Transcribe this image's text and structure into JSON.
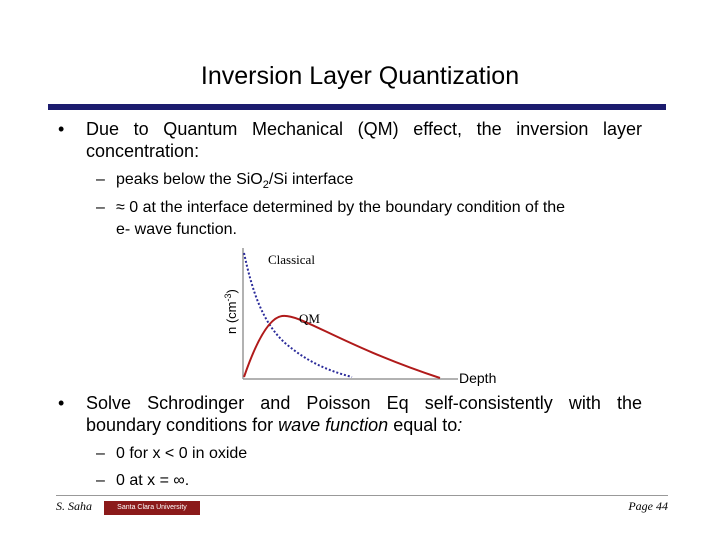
{
  "title": "Inversion Layer Quantization",
  "bullet1": {
    "marker": "•",
    "text": "Due to Quantum Mechanical (QM) effect, the inversion layer concentration:",
    "subs": [
      {
        "dash": "–",
        "text_a": "peaks below the SiO",
        "sub": "2",
        "text_b": "/Si interface"
      },
      {
        "dash": "–",
        "text_line1": "≈ 0 at the interface determined by the boundary condition of the",
        "text_line2": "e- wave function."
      }
    ]
  },
  "chart": {
    "ylabel_main": "n (cm",
    "ylabel_sup": "-3",
    "ylabel_end": ")",
    "xlabel": "Depth",
    "classical_label": "Classical",
    "qm_label": "QM",
    "colors": {
      "classical": "#2b2b9a",
      "qm": "#b01a1a",
      "axis": "#999999"
    }
  },
  "bullet2": {
    "marker": "•",
    "text_a": "Solve Schrodinger and Poisson Eq self-consistently with the boundary conditions for ",
    "text_italic": "wave function",
    "text_b": " equal to",
    "text_colon": ":",
    "subs": [
      {
        "dash": "–",
        "text": "0 for x < 0 in oxide"
      },
      {
        "dash": "–",
        "text": "0 at x = ∞."
      }
    ]
  },
  "footer": {
    "author": "S. Saha",
    "logo_text": "Santa Clara University",
    "page": "Page 44"
  }
}
